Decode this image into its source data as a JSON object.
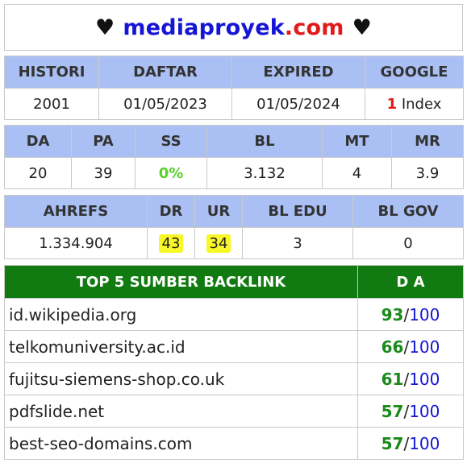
{
  "title": {
    "heart_left": "♥",
    "part1": "mediaproyek",
    "part2": ".com",
    "heart_right": "♥"
  },
  "history_table": {
    "headers": [
      "HISTORI",
      "DAFTAR",
      "EXPIRED",
      "GOOGLE"
    ],
    "values": {
      "histori": "2001",
      "daftar": "01/05/2023",
      "expired": "01/05/2024",
      "google_count": "1",
      "google_label": "Index"
    }
  },
  "metrics_table": {
    "headers": [
      "DA",
      "PA",
      "SS",
      "BL",
      "MT",
      "MR"
    ],
    "values": [
      "20",
      "39",
      "0%",
      "3.132",
      "4",
      "3.9"
    ]
  },
  "ahrefs_table": {
    "headers": [
      "AHREFS",
      "DR",
      "UR",
      "BL EDU",
      "BL GOV"
    ],
    "values": [
      "1.334.904",
      "43",
      "34",
      "3",
      "0"
    ]
  },
  "top_backlinks": {
    "header_source": "TOP 5 SUMBER BACKLINK",
    "header_da": "D A",
    "rows": [
      {
        "domain": "id.wikipedia.org",
        "da": "93",
        "sep": "/",
        "max": "100"
      },
      {
        "domain": "telkomuniversity.ac.id",
        "da": "66",
        "sep": "/",
        "max": "100"
      },
      {
        "domain": "fujitsu-siemens-shop.co.uk",
        "da": "61",
        "sep": "/",
        "max": "100"
      },
      {
        "domain": "pdfslide.net",
        "da": "57",
        "sep": "/",
        "max": "100"
      },
      {
        "domain": "best-seo-domains.com",
        "da": "57",
        "sep": "/",
        "max": "100"
      }
    ]
  },
  "colors": {
    "header_blue": "#aac0f4",
    "header_green": "#117a11",
    "brand_blue": "#1515d6",
    "brand_red": "#e11a1a",
    "highlight_yellow": "#f7f729",
    "ss_green": "#5ad12d",
    "da_green": "#1a8a1a"
  }
}
